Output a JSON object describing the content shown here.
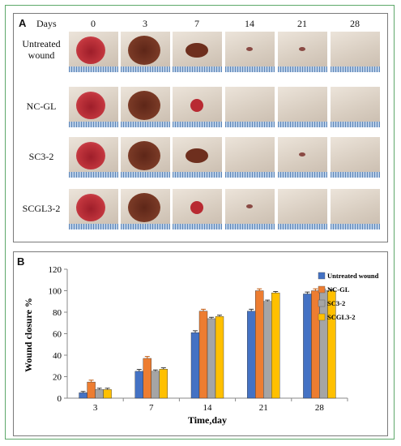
{
  "panel_a": {
    "label": "A",
    "days_label": "Days",
    "days": [
      "0",
      "3",
      "7",
      "14",
      "21",
      "28"
    ],
    "rows": [
      {
        "label": "Untreated wound",
        "wounds": [
          "large-open",
          "large-scab",
          "medium-scab",
          "small-dot",
          "small-dot",
          "healed"
        ]
      },
      {
        "label": "NC-GL",
        "wounds": [
          "large-open",
          "large-scab",
          "small-open",
          "healed",
          "healed",
          "healed"
        ]
      },
      {
        "label": "SC3-2",
        "wounds": [
          "large-open",
          "large-scab",
          "medium-scab",
          "healed",
          "small-dot",
          "healed"
        ]
      },
      {
        "label": "SCGL3-2",
        "wounds": [
          "large-open",
          "large-scab",
          "small-open",
          "small-dot",
          "healed",
          "healed"
        ]
      }
    ],
    "wound_colors": {
      "open": "#b82a32",
      "scab": "#6e2f1e",
      "dot": "#8a4a44"
    }
  },
  "panel_b": {
    "label": "B"
  },
  "chart_data": {
    "type": "bar",
    "categories": [
      "3",
      "7",
      "14",
      "21",
      "28"
    ],
    "series": [
      {
        "name": "Untreated wound",
        "color": "#4472c4",
        "values": [
          5,
          25,
          61,
          81,
          97
        ]
      },
      {
        "name": "NC-GL",
        "color": "#ed7d31",
        "values": [
          15,
          37,
          81,
          100,
          100
        ]
      },
      {
        "name": "SC3-2",
        "color": "#a5a5a5",
        "values": [
          8,
          25,
          74,
          90,
          100
        ]
      },
      {
        "name": "SCGL3-2",
        "color": "#ffc000",
        "values": [
          8,
          27,
          76,
          98,
          100
        ]
      }
    ],
    "errors": [
      [
        0.5,
        1,
        1,
        1,
        1
      ],
      [
        1,
        1,
        1,
        1,
        1
      ],
      [
        0.5,
        0.5,
        0.5,
        0.5,
        0.5
      ],
      [
        0.5,
        0.5,
        0.5,
        0.5,
        0.5
      ]
    ],
    "xlabel": "Time,day",
    "ylabel": "Wound closure %",
    "yticks": [
      0,
      20,
      40,
      60,
      80,
      100,
      120
    ],
    "ylim": [
      0,
      120
    ],
    "grid": false,
    "legend": "right"
  }
}
